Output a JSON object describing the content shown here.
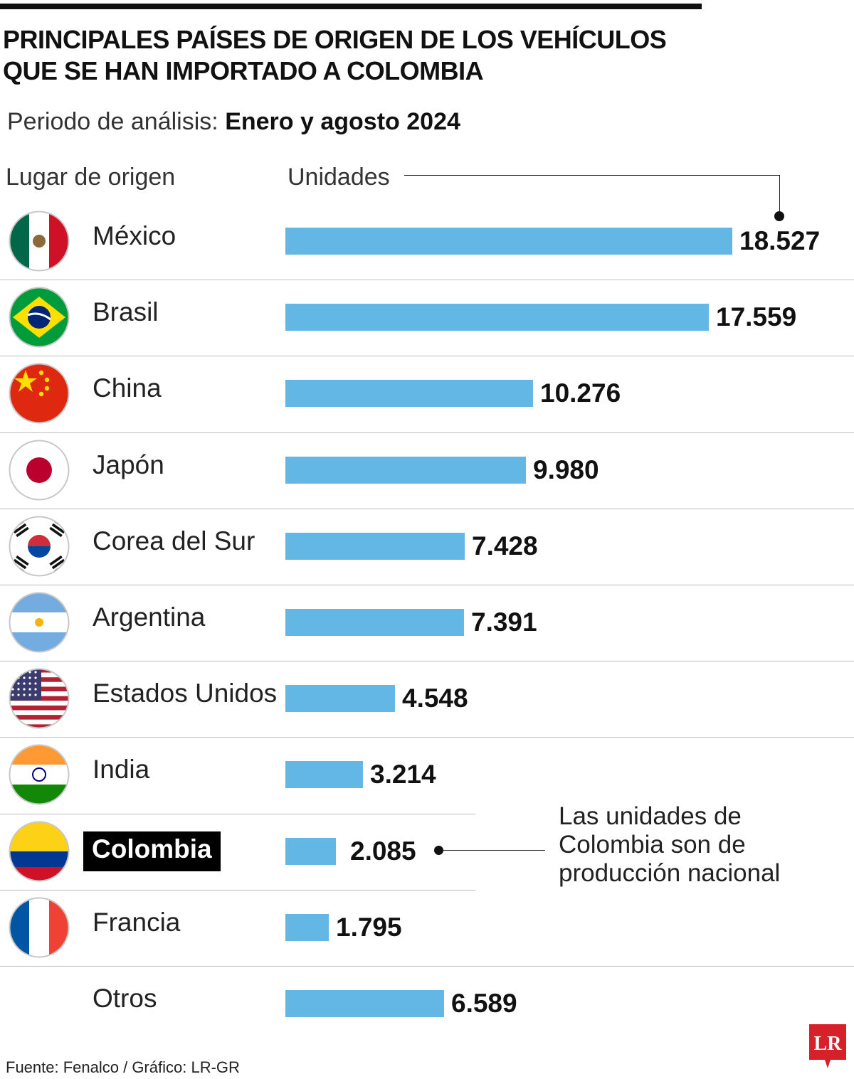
{
  "title": "PRINCIPALES PAÍSES DE ORIGEN DE LOS VEHÍCULOS QUE SE HAN IMPORTADO A COLOMBIA",
  "period": {
    "label": "Periodo de análisis:",
    "value": "Enero y agosto 2024"
  },
  "headers": {
    "country": "Lugar de origen",
    "units": "Unidades"
  },
  "note": "Las unidades de Colombia son de producción nacional",
  "source": "Fuente: Fenalco / Gráfico: LR-GR",
  "logo_text": "LR",
  "colors": {
    "bar": "#63b7e4",
    "highlight_bg": "#000000",
    "logo": "#d6202a"
  },
  "chart_data": {
    "type": "bar",
    "orientation": "horizontal",
    "title": "PRINCIPALES PAÍSES DE ORIGEN DE LOS VEHÍCULOS QUE SE HAN IMPORTADO A COLOMBIA",
    "xlabel": "Unidades",
    "ylabel": "Lugar de origen",
    "xlim": [
      0,
      18527
    ],
    "categories": [
      "México",
      "Brasil",
      "China",
      "Japón",
      "Corea del Sur",
      "Argentina",
      "Estados Unidos",
      "India",
      "Colombia",
      "Francia",
      "Otros"
    ],
    "values": [
      18527,
      17559,
      10276,
      9980,
      7428,
      7391,
      4548,
      3214,
      2085,
      1795,
      6589
    ],
    "labels": [
      "18.527",
      "17.559",
      "10.276",
      "9.980",
      "7.428",
      "7.391",
      "4.548",
      "3.214",
      "2.085",
      "1.795",
      "6.589"
    ],
    "flags": [
      "mexico",
      "brazil",
      "china",
      "japan",
      "south-korea",
      "argentina",
      "usa",
      "india",
      "colombia",
      "france",
      ""
    ],
    "highlight": "Colombia"
  }
}
